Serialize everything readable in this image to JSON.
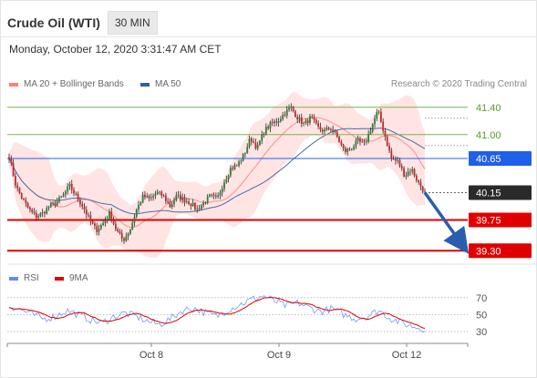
{
  "header": {
    "title": "Crude Oil (WTI)",
    "timeframe": "30 MIN",
    "datetime": "Monday, October 12, 2020 3:31:47 AM CET"
  },
  "legend": {
    "ma20": {
      "label": "MA 20 + Bollinger Bands",
      "color": "#ff7f7f"
    },
    "ma50": {
      "label": "MA 50",
      "color": "#2f5fa8"
    },
    "rsi": {
      "label": "RSI",
      "color": "#5b8ff0"
    },
    "ma9": {
      "label": "9MA",
      "color": "#e00000"
    }
  },
  "credit": "Research © 2020 Trading Central",
  "chart_data": {
    "type": "candlestick",
    "symbol": "Crude Oil (WTI)",
    "interval": "30 MIN",
    "x_ticks": [
      "Oct 8",
      "Oct 9",
      "Oct 12"
    ],
    "y_range": [
      39.1,
      41.8
    ],
    "levels": [
      {
        "value": 41.4,
        "label": "41.40",
        "kind": "resistance",
        "color": "#7ab648"
      },
      {
        "value": 41.0,
        "label": "41.00",
        "kind": "resistance",
        "color": "#7ab648"
      },
      {
        "value": 40.65,
        "label": "40.65",
        "kind": "pivot",
        "color": "#2060e8"
      },
      {
        "value": 40.15,
        "label": "40.15",
        "kind": "last price",
        "color": "#2a2a2a"
      },
      {
        "value": 39.75,
        "label": "39.75",
        "kind": "support",
        "color": "#e00000"
      },
      {
        "value": 39.3,
        "label": "39.30",
        "kind": "support",
        "color": "#e00000"
      }
    ],
    "projection": {
      "from": 40.15,
      "to": 39.3,
      "color": "#2a5db0"
    },
    "price_anchors": [
      40.68,
      40.25,
      40.05,
      39.9,
      39.8,
      39.85,
      39.95,
      40.0,
      40.1,
      40.25,
      40.1,
      39.95,
      39.75,
      39.6,
      39.7,
      39.85,
      39.6,
      39.45,
      39.6,
      39.9,
      40.1,
      40.05,
      40.15,
      40.1,
      39.95,
      40.1,
      40.05,
      40.0,
      39.9,
      40.0,
      40.1,
      40.05,
      40.3,
      40.5,
      40.55,
      40.7,
      40.95,
      40.8,
      41.05,
      41.15,
      41.2,
      41.3,
      41.4,
      41.25,
      41.15,
      41.25,
      41.1,
      41.05,
      41.1,
      40.95,
      40.75,
      40.8,
      40.9,
      40.85,
      41.1,
      41.35,
      41.0,
      40.65,
      40.6,
      40.4,
      40.5,
      40.3,
      40.15
    ],
    "rsi": {
      "levels": [
        70,
        50,
        30
      ],
      "range": [
        20,
        80
      ],
      "anchors": [
        60,
        56,
        50,
        45,
        48,
        55,
        50,
        44,
        40,
        47,
        52,
        48,
        42,
        38,
        45,
        55,
        58,
        52,
        48,
        56,
        62,
        68,
        72,
        66,
        60,
        64,
        58,
        54,
        57,
        50,
        45,
        48,
        55,
        46,
        40,
        36,
        33
      ]
    }
  }
}
